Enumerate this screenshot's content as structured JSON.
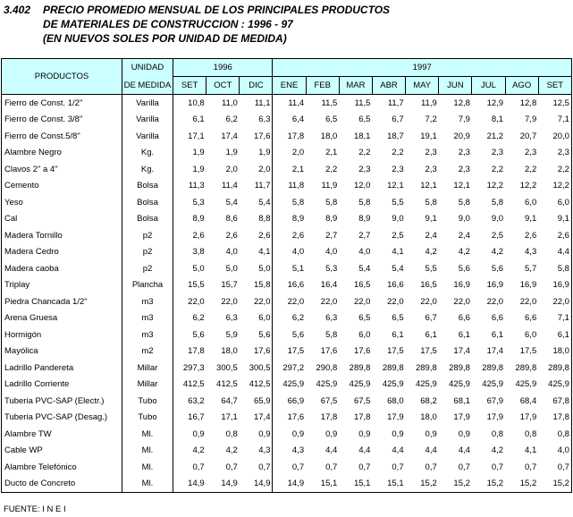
{
  "title": {
    "number": "3.402",
    "lines": [
      "PRECIO PROMEDIO MENSUAL DE LOS PRINCIPALES PRODUCTOS",
      "DE MATERIALES DE CONSTRUCCION : 1996 - 97",
      "(EN NUEVOS SOLES POR UNIDAD DE MEDIDA)"
    ]
  },
  "table": {
    "headers": {
      "product": "PRODUCTOS",
      "unit": [
        "UNIDAD",
        "DE MEDIDA"
      ],
      "years": [
        {
          "label": "1996",
          "months": [
            "SET",
            "OCT",
            "DIC"
          ]
        },
        {
          "label": "1997",
          "months": [
            "ENE",
            "FEB",
            "MAR",
            "ABR",
            "MAY",
            "JUN",
            "JUL",
            "AGO",
            "SET"
          ]
        }
      ]
    },
    "rows": [
      [
        "Fierro de Const. 1/2\"",
        "Varilla",
        "10,8",
        "11,0",
        "11,1",
        "11,4",
        "11,5",
        "11,5",
        "11,7",
        "11,9",
        "12,8",
        "12,9",
        "12,8",
        "12,5"
      ],
      [
        "Fierro de Const. 3/8\"",
        "Varilla",
        "6,1",
        "6,2",
        "6,3",
        "6,4",
        "6,5",
        "6,5",
        "6,7",
        "7,2",
        "7,9",
        "8,1",
        "7,9",
        "7,1"
      ],
      [
        "Fierro de Const.5/8\"",
        "Varilla",
        "17,1",
        "17,4",
        "17,6",
        "17,8",
        "18,0",
        "18,1",
        "18,7",
        "19,1",
        "20,9",
        "21,2",
        "20,7",
        "20,0"
      ],
      [
        "Alambre Negro",
        "Kg.",
        "1,9",
        "1,9",
        "1,9",
        "2,0",
        "2,1",
        "2,2",
        "2,2",
        "2,3",
        "2,3",
        "2,3",
        "2,3",
        "2,3"
      ],
      [
        "Clavos 2\" a 4\"",
        "Kg.",
        "1,9",
        "2,0",
        "2,0",
        "2,1",
        "2,2",
        "2,3",
        "2,3",
        "2,3",
        "2,3",
        "2,2",
        "2,2",
        "2,2"
      ],
      [
        "Cemento",
        "Bolsa",
        "11,3",
        "11,4",
        "11,7",
        "11,8",
        "11,9",
        "12,0",
        "12,1",
        "12,1",
        "12,1",
        "12,2",
        "12,2",
        "12,2"
      ],
      [
        "Yeso",
        "Bolsa",
        "5,3",
        "5,4",
        "5,4",
        "5,8",
        "5,8",
        "5,8",
        "5,5",
        "5,8",
        "5,8",
        "5,8",
        "6,0",
        "6,0"
      ],
      [
        "Cal",
        "Bolsa",
        "8,9",
        "8,6",
        "8,8",
        "8,9",
        "8,9",
        "8,9",
        "9,0",
        "9,1",
        "9,0",
        "9,0",
        "9,1",
        "9,1"
      ],
      [
        "Madera Tornillo",
        "p2",
        "2,6",
        "2,6",
        "2,6",
        "2,6",
        "2,7",
        "2,7",
        "2,5",
        "2,4",
        "2,4",
        "2,5",
        "2,6",
        "2,6"
      ],
      [
        "Madera Cedro",
        "p2",
        "3,8",
        "4,0",
        "4,1",
        "4,0",
        "4,0",
        "4,0",
        "4,1",
        "4,2",
        "4,2",
        "4,2",
        "4,3",
        "4,4"
      ],
      [
        "Madera caoba",
        "p2",
        "5,0",
        "5,0",
        "5,0",
        "5,1",
        "5,3",
        "5,4",
        "5,4",
        "5,5",
        "5,6",
        "5,6",
        "5,7",
        "5,8"
      ],
      [
        "Triplay",
        "Plancha",
        "15,5",
        "15,7",
        "15,8",
        "16,6",
        "16,4",
        "16,5",
        "16,6",
        "16,5",
        "16,9",
        "16,9",
        "16,9",
        "16,9"
      ],
      [
        "Piedra Chancada 1/2\"",
        "m3",
        "22,0",
        "22,0",
        "22,0",
        "22,0",
        "22,0",
        "22,0",
        "22,0",
        "22,0",
        "22,0",
        "22,0",
        "22,0",
        "22,0"
      ],
      [
        "Arena Gruesa",
        "m3",
        "6,2",
        "6,3",
        "6,0",
        "6,2",
        "6,3",
        "6,5",
        "6,5",
        "6,7",
        "6,6",
        "6,6",
        "6,6",
        "7,1"
      ],
      [
        "Hormigón",
        "m3",
        "5,6",
        "5,9",
        "5,6",
        "5,6",
        "5,8",
        "6,0",
        "6,1",
        "6,1",
        "6,1",
        "6,1",
        "6,0",
        "6,1"
      ],
      [
        "Mayólica",
        "m2",
        "17,8",
        "18,0",
        "17,6",
        "17,5",
        "17,6",
        "17,6",
        "17,5",
        "17,5",
        "17,4",
        "17,4",
        "17,5",
        "18,0"
      ],
      [
        "Ladrillo Pandereta",
        "Millar",
        "297,3",
        "300,5",
        "300,5",
        "297,2",
        "290,8",
        "289,8",
        "289,8",
        "289,8",
        "289,8",
        "289,8",
        "289,8",
        "289,8"
      ],
      [
        "Ladrillo Corriente",
        "Millar",
        "412,5",
        "412,5",
        "412,5",
        "425,9",
        "425,9",
        "425,9",
        "425,9",
        "425,9",
        "425,9",
        "425,9",
        "425,9",
        "425,9"
      ],
      [
        "Tuberia PVC-SAP (Electr.)",
        "Tubo",
        "63,2",
        "64,7",
        "65,9",
        "66,9",
        "67,5",
        "67,5",
        "68,0",
        "68,2",
        "68,1",
        "67,9",
        "68,4",
        "67,8"
      ],
      [
        "Tuberia PVC-SAP (Desag.)",
        "Tubo",
        "16,7",
        "17,1",
        "17,4",
        "17,6",
        "17,8",
        "17,8",
        "17,9",
        "18,0",
        "17,9",
        "17,9",
        "17,9",
        "17,8"
      ],
      [
        "Alambre TW",
        "Ml.",
        "0,9",
        "0,8",
        "0,9",
        "0,9",
        "0,9",
        "0,9",
        "0,9",
        "0,9",
        "0,9",
        "0,8",
        "0,8",
        "0,8"
      ],
      [
        "Cable WP",
        "Ml.",
        "4,2",
        "4,2",
        "4,3",
        "4,3",
        "4,4",
        "4,4",
        "4,4",
        "4,4",
        "4,4",
        "4,2",
        "4,1",
        "4,0"
      ],
      [
        "Alambre Telefónico",
        "Ml.",
        "0,7",
        "0,7",
        "0,7",
        "0,7",
        "0,7",
        "0,7",
        "0,7",
        "0,7",
        "0,7",
        "0,7",
        "0,7",
        "0,7"
      ],
      [
        "Ducto de Concreto",
        "Ml.",
        "14,9",
        "14,9",
        "14,9",
        "14,9",
        "15,1",
        "15,1",
        "15,1",
        "15,2",
        "15,2",
        "15,2",
        "15,2",
        "15,2"
      ]
    ]
  },
  "footer": "FUENTE: I N E I"
}
